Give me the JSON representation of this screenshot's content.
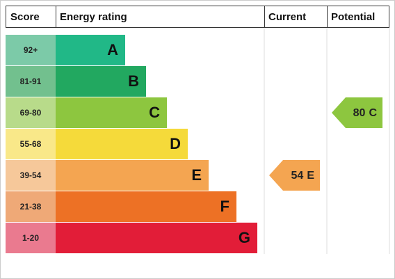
{
  "header": {
    "score": "Score",
    "rating": "Energy rating",
    "current": "Current",
    "potential": "Potential"
  },
  "bands": [
    {
      "score": "92+",
      "letter": "A",
      "color": "#21b887",
      "score_color": "#7ccaa8"
    },
    {
      "score": "81-91",
      "letter": "B",
      "color": "#22a860",
      "score_color": "#72c08e"
    },
    {
      "score": "69-80",
      "letter": "C",
      "color": "#8dc63f",
      "score_color": "#b8db8a"
    },
    {
      "score": "55-68",
      "letter": "D",
      "color": "#f5da3a",
      "score_color": "#f9e889"
    },
    {
      "score": "39-54",
      "letter": "E",
      "color": "#f4a551",
      "score_color": "#f6c89a"
    },
    {
      "score": "21-38",
      "letter": "F",
      "color": "#ed7125",
      "score_color": "#efa977"
    },
    {
      "score": "1-20",
      "letter": "G",
      "color": "#e21d38",
      "score_color": "#ea7a8f"
    }
  ],
  "current": {
    "value": 54,
    "letter": "E"
  },
  "potential": {
    "value": 80,
    "letter": "C"
  }
}
